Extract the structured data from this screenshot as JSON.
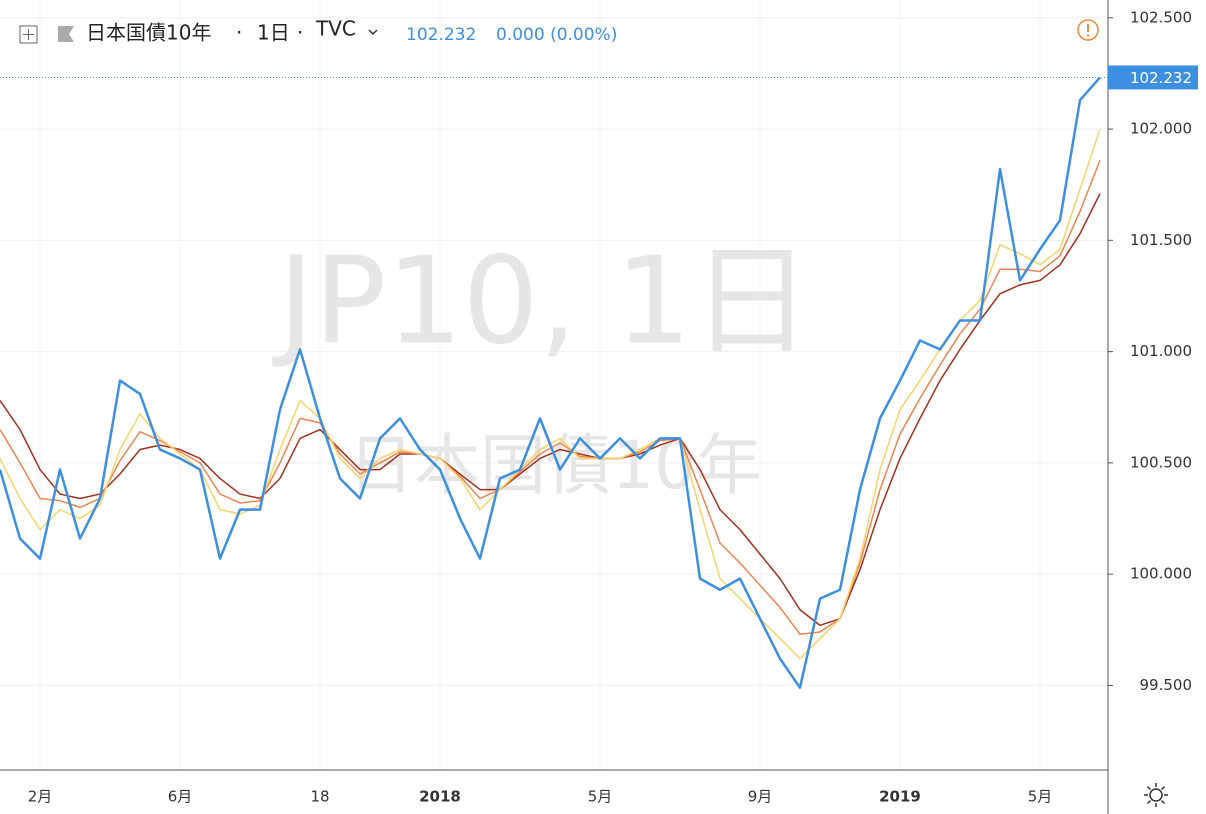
{
  "chart_data": {
    "type": "line",
    "title": "日本国債10年",
    "interval": "1日",
    "source": "TVC",
    "last_label": "102.232",
    "change": "0.000 (0.00%)",
    "watermark": "JP10, 1日",
    "categories": [
      null,
      null,
      "2月",
      null,
      null,
      null,
      null,
      null,
      null,
      "6月",
      null,
      null,
      null,
      null,
      null,
      null,
      "18",
      null,
      null,
      null,
      null,
      null,
      "2018",
      null,
      null,
      null,
      null,
      null,
      null,
      null,
      "5月",
      null,
      null,
      null,
      null,
      null,
      null,
      null,
      "9月",
      null,
      null,
      null,
      null,
      null,
      null,
      "2019",
      null,
      null,
      null,
      null,
      null,
      null,
      "5月",
      null,
      null,
      null
    ],
    "series": [
      {
        "name": "日本国債10年",
        "color": "#3d8fe0",
        "values": [
          100.47,
          100.16,
          100.07,
          100.47,
          100.16,
          100.34,
          100.87,
          100.81,
          100.56,
          100.52,
          100.47,
          100.07,
          100.29,
          100.29,
          100.74,
          101.01,
          100.7,
          100.43,
          100.34,
          100.61,
          100.7,
          100.56,
          100.47,
          100.25,
          100.07,
          100.43,
          100.47,
          100.7,
          100.47,
          100.61,
          100.52,
          100.61,
          100.52,
          100.61,
          100.61,
          99.98,
          99.93,
          99.98,
          99.8,
          99.62,
          99.49,
          99.89,
          99.93,
          100.38,
          100.7,
          100.87,
          101.05,
          101.01,
          101.14,
          101.14,
          101.82,
          101.32,
          101.46,
          101.59,
          102.13,
          102.232
        ]
      },
      {
        "color": "#f5d46a",
        "values": [
          100.52,
          100.34,
          100.2,
          100.29,
          100.25,
          100.31,
          100.56,
          100.72,
          100.61,
          100.54,
          100.47,
          100.29,
          100.27,
          100.31,
          100.56,
          100.78,
          100.7,
          100.52,
          100.43,
          100.52,
          100.56,
          100.54,
          100.52,
          100.43,
          100.29,
          100.38,
          100.47,
          100.56,
          100.61,
          100.52,
          100.52,
          100.52,
          100.56,
          100.61,
          100.61,
          100.29,
          99.98,
          99.89,
          99.8,
          99.71,
          99.62,
          99.71,
          99.8,
          100.07,
          100.47,
          100.74,
          100.87,
          101.01,
          101.14,
          101.23,
          101.48,
          101.44,
          101.39,
          101.46,
          101.73,
          102.0
        ]
      },
      {
        "color": "#ee8550",
        "values": [
          100.65,
          100.5,
          100.34,
          100.33,
          100.3,
          100.34,
          100.51,
          100.64,
          100.6,
          100.55,
          100.5,
          100.36,
          100.32,
          100.33,
          100.5,
          100.7,
          100.68,
          100.54,
          100.45,
          100.5,
          100.55,
          100.54,
          100.52,
          100.44,
          100.34,
          100.38,
          100.46,
          100.54,
          100.59,
          100.53,
          100.52,
          100.52,
          100.55,
          100.6,
          100.61,
          100.38,
          100.14,
          100.05,
          99.95,
          99.85,
          99.73,
          99.74,
          99.8,
          100.05,
          100.38,
          100.63,
          100.79,
          100.94,
          101.08,
          101.19,
          101.37,
          101.37,
          101.36,
          101.43,
          101.63,
          101.86
        ]
      },
      {
        "color": "#a3301e",
        "values": [
          100.78,
          100.65,
          100.47,
          100.36,
          100.34,
          100.36,
          100.45,
          100.56,
          100.58,
          100.56,
          100.52,
          100.43,
          100.36,
          100.34,
          100.43,
          100.61,
          100.65,
          100.56,
          100.47,
          100.47,
          100.54,
          100.54,
          100.52,
          100.45,
          100.38,
          100.38,
          100.45,
          100.52,
          100.56,
          100.54,
          100.52,
          100.52,
          100.54,
          100.58,
          100.61,
          100.47,
          100.29,
          100.2,
          100.09,
          99.98,
          99.84,
          99.77,
          99.8,
          100.02,
          100.29,
          100.52,
          100.7,
          100.87,
          101.01,
          101.14,
          101.26,
          101.3,
          101.32,
          101.39,
          101.53,
          101.71
        ]
      }
    ],
    "ylim": [
      99.12,
      102.58
    ],
    "yticks": [
      {
        "value": 99.5,
        "label": "99.500"
      },
      {
        "value": 100,
        "label": "100.000"
      },
      {
        "value": 100.5,
        "label": "100.500"
      },
      {
        "value": 101,
        "label": "101.000"
      },
      {
        "value": 101.5,
        "label": "101.500"
      },
      {
        "value": 102,
        "label": "102.000"
      },
      {
        "value": 102.5,
        "label": "102.500"
      }
    ],
    "grid": true
  }
}
